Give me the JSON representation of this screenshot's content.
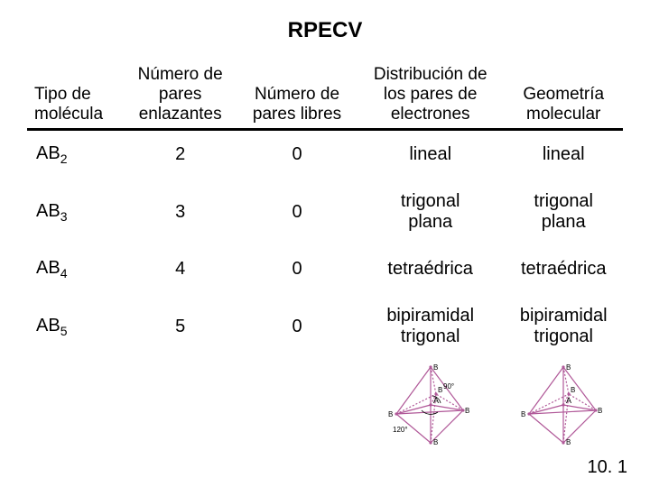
{
  "title": "RPECV",
  "headers": {
    "c0": "Tipo de\nmolécula",
    "c1": "Número de\npares\nenlazantes",
    "c2": "Número de\npares libres",
    "c3": "Distribución de\nlos pares de\nelectrones",
    "c4": "Geometría\nmolecular"
  },
  "rows": [
    {
      "type_base": "AB",
      "type_sub": "2",
      "bonding": "2",
      "lone": "0",
      "arrangement": "lineal",
      "geometry": "lineal"
    },
    {
      "type_base": "AB",
      "type_sub": "3",
      "bonding": "3",
      "lone": "0",
      "arrangement": "trigonal\nplana",
      "geometry": "trigonal\nplana"
    },
    {
      "type_base": "AB",
      "type_sub": "4",
      "bonding": "4",
      "lone": "0",
      "arrangement": "tetraédrica",
      "geometry": "tetraédrica"
    },
    {
      "type_base": "AB",
      "type_sub": "5",
      "bonding": "5",
      "lone": "0",
      "arrangement": "bipiramidal\ntrigonal",
      "geometry": "bipiramidal\ntrigonal"
    }
  ],
  "diagram": {
    "line_color": "#b05898",
    "dot_color": "#b05898",
    "text_color": "#000000",
    "angle90": "90",
    "angle120": "120",
    "deg": "°",
    "A": "A",
    "B": "B",
    "stroke_width": 1.2,
    "dot_r": 1.6,
    "font_size": 8
  },
  "pagenum": "10. 1"
}
